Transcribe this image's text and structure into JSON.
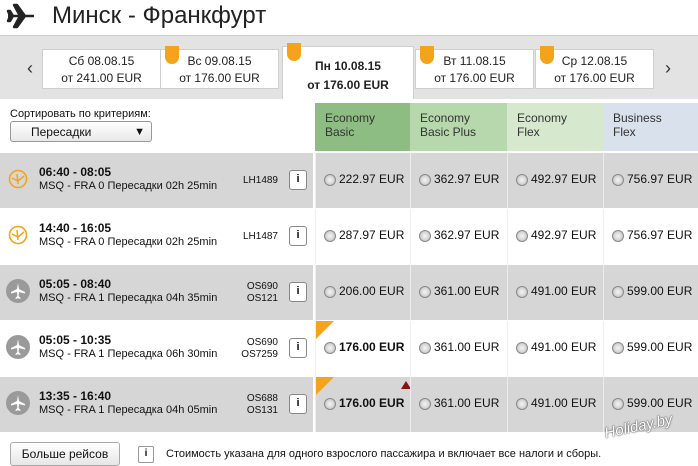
{
  "header": {
    "title": "Минск - Франкфурт"
  },
  "dates": [
    {
      "line1": "Сб 08.08.15",
      "line2": "от 241.00 EUR",
      "flag": false
    },
    {
      "line1": "Вс 09.08.15",
      "line2": "от 176.00 EUR",
      "flag": true
    },
    {
      "line1": "Пн 10.08.15",
      "line2": "от 176.00 EUR",
      "flag": true
    },
    {
      "line1": "Вт 11.08.15",
      "line2": "от 176.00 EUR",
      "flag": true
    },
    {
      "line1": "Ср 12.08.15",
      "line2": "от 176.00 EUR",
      "flag": true
    }
  ],
  "nav": {
    "prev": "‹",
    "next": "›"
  },
  "sort": {
    "label": "Сортировать по критериям:",
    "value": "Пересадки"
  },
  "fares": [
    {
      "line1": "Economy",
      "line2": "Basic",
      "color": "#8dbd82"
    },
    {
      "line1": "Economy",
      "line2": "Basic Plus",
      "color": "#b7d8ac"
    },
    {
      "line1": "Economy",
      "line2": "Flex",
      "color": "#d6e9cf"
    },
    {
      "line1": "Business",
      "line2": "Flex",
      "color": "#d9e2ec"
    }
  ],
  "flights": [
    {
      "times": "06:40 - 08:05",
      "detail": "MSQ - FRA  0 Пересадки  02h 25min",
      "codes": [
        "LH1489"
      ],
      "airline": "lufthansa-icon",
      "bg": "#d6d6d6",
      "info": "i",
      "prices": [
        "222.97 EUR",
        "362.97 EUR",
        "492.97 EUR",
        "756.97 EUR"
      ],
      "best": false
    },
    {
      "times": "14:40 - 16:05",
      "detail": "MSQ - FRA  0 Пересадки  02h 25min",
      "codes": [
        "LH1487"
      ],
      "airline": "lufthansa-icon",
      "bg": "#ffffff",
      "info": "i",
      "prices": [
        "287.97 EUR",
        "362.97 EUR",
        "492.97 EUR",
        "756.97 EUR"
      ],
      "best": false
    },
    {
      "times": "05:05 - 08:40",
      "detail": "MSQ - FRA  1 Пересадка  04h 35min",
      "codes": [
        "OS690",
        "OS121"
      ],
      "airline": "plane-icon",
      "bg": "#d6d6d6",
      "info": "i",
      "prices": [
        "206.00 EUR",
        "361.00 EUR",
        "491.00 EUR",
        "599.00 EUR"
      ],
      "best": false
    },
    {
      "times": "05:05 - 10:35",
      "detail": "MSQ - FRA  1 Пересадка  06h 30min",
      "codes": [
        "OS690",
        "OS7259"
      ],
      "airline": "plane-icon",
      "bg": "#ffffff",
      "info": "i",
      "prices": [
        "176.00 EUR",
        "361.00 EUR",
        "491.00 EUR",
        "599.00 EUR"
      ],
      "best": true
    },
    {
      "times": "13:35 - 16:40",
      "detail": "MSQ - FRA  1 Пересадка  04h 05min",
      "codes": [
        "OS688",
        "OS131"
      ],
      "airline": "plane-icon",
      "bg": "#d6d6d6",
      "info": "i",
      "prices": [
        "176.00 EUR",
        "361.00 EUR",
        "491.00 EUR",
        "599.00 EUR"
      ],
      "best": true
    }
  ],
  "footer": {
    "more_button": "Больше рейсов",
    "info": "i",
    "note": "Стоимость указана для одного взрослого пассажира и включает все налоги и сборы."
  },
  "watermark": "Holiday.by"
}
